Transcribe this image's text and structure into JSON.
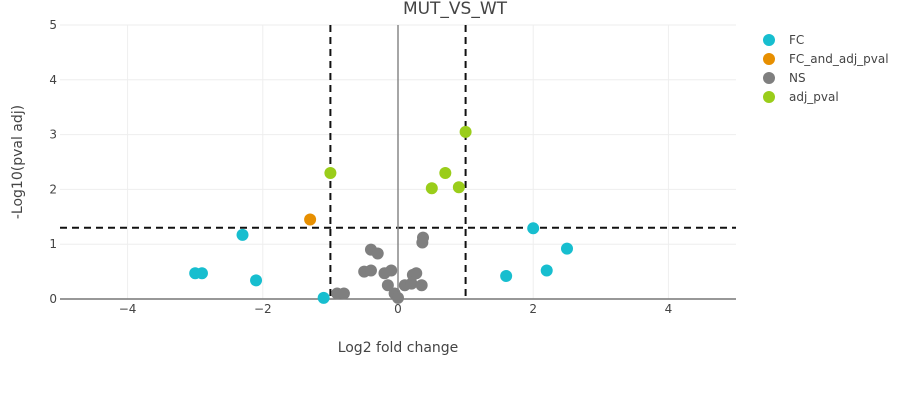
{
  "chart_data": {
    "type": "scatter",
    "title": "MUT_VS_WT",
    "xlabel": "Log2 fold change",
    "ylabel": "-Log10(pval adj)",
    "xlim": [
      -5,
      5
    ],
    "ylim": [
      0,
      5
    ],
    "x_ticks": [
      -4,
      -2,
      0,
      2,
      4
    ],
    "x_tick_labels": [
      "−4",
      "−2",
      "0",
      "2",
      "4"
    ],
    "y_ticks": [
      0,
      1,
      2,
      3,
      4,
      5
    ],
    "y_tick_labels": [
      "0",
      "1",
      "2",
      "3",
      "4",
      "5"
    ],
    "grid": true,
    "legend_position": "top-right",
    "thresholds": {
      "x": [
        -1,
        1
      ],
      "y": 1.3
    },
    "series": [
      {
        "name": "FC",
        "color": "#17becf",
        "points": [
          {
            "x": -3.0,
            "y": 0.47
          },
          {
            "x": -2.9,
            "y": 0.47
          },
          {
            "x": -2.1,
            "y": 0.34
          },
          {
            "x": -2.3,
            "y": 1.17
          },
          {
            "x": -1.1,
            "y": 0.02
          },
          {
            "x": 1.6,
            "y": 0.42
          },
          {
            "x": 2.0,
            "y": 1.29
          },
          {
            "x": 2.2,
            "y": 0.52
          },
          {
            "x": 2.5,
            "y": 0.92
          }
        ]
      },
      {
        "name": "FC_and_adj_pval",
        "color": "#e78f00",
        "points": [
          {
            "x": -1.3,
            "y": 1.45
          }
        ]
      },
      {
        "name": "NS",
        "color": "#7f7f7f",
        "points": [
          {
            "x": -0.9,
            "y": 0.1
          },
          {
            "x": -0.8,
            "y": 0.1
          },
          {
            "x": -0.5,
            "y": 0.5
          },
          {
            "x": -0.4,
            "y": 0.52
          },
          {
            "x": -0.4,
            "y": 0.9
          },
          {
            "x": -0.3,
            "y": 0.83
          },
          {
            "x": -0.2,
            "y": 0.47
          },
          {
            "x": -0.1,
            "y": 0.52
          },
          {
            "x": -0.15,
            "y": 0.25
          },
          {
            "x": -0.05,
            "y": 0.1
          },
          {
            "x": 0.0,
            "y": 0.02
          },
          {
            "x": 0.1,
            "y": 0.25
          },
          {
            "x": 0.2,
            "y": 0.28
          },
          {
            "x": 0.22,
            "y": 0.44
          },
          {
            "x": 0.27,
            "y": 0.47
          },
          {
            "x": 0.35,
            "y": 0.25
          },
          {
            "x": 0.36,
            "y": 1.03
          },
          {
            "x": 0.37,
            "y": 1.12
          }
        ]
      },
      {
        "name": "adj_pval",
        "color": "#9acd1a",
        "points": [
          {
            "x": -1.0,
            "y": 2.3
          },
          {
            "x": 0.5,
            "y": 2.02
          },
          {
            "x": 0.7,
            "y": 2.3
          },
          {
            "x": 0.9,
            "y": 2.04
          },
          {
            "x": 1.0,
            "y": 3.05
          }
        ]
      }
    ]
  }
}
